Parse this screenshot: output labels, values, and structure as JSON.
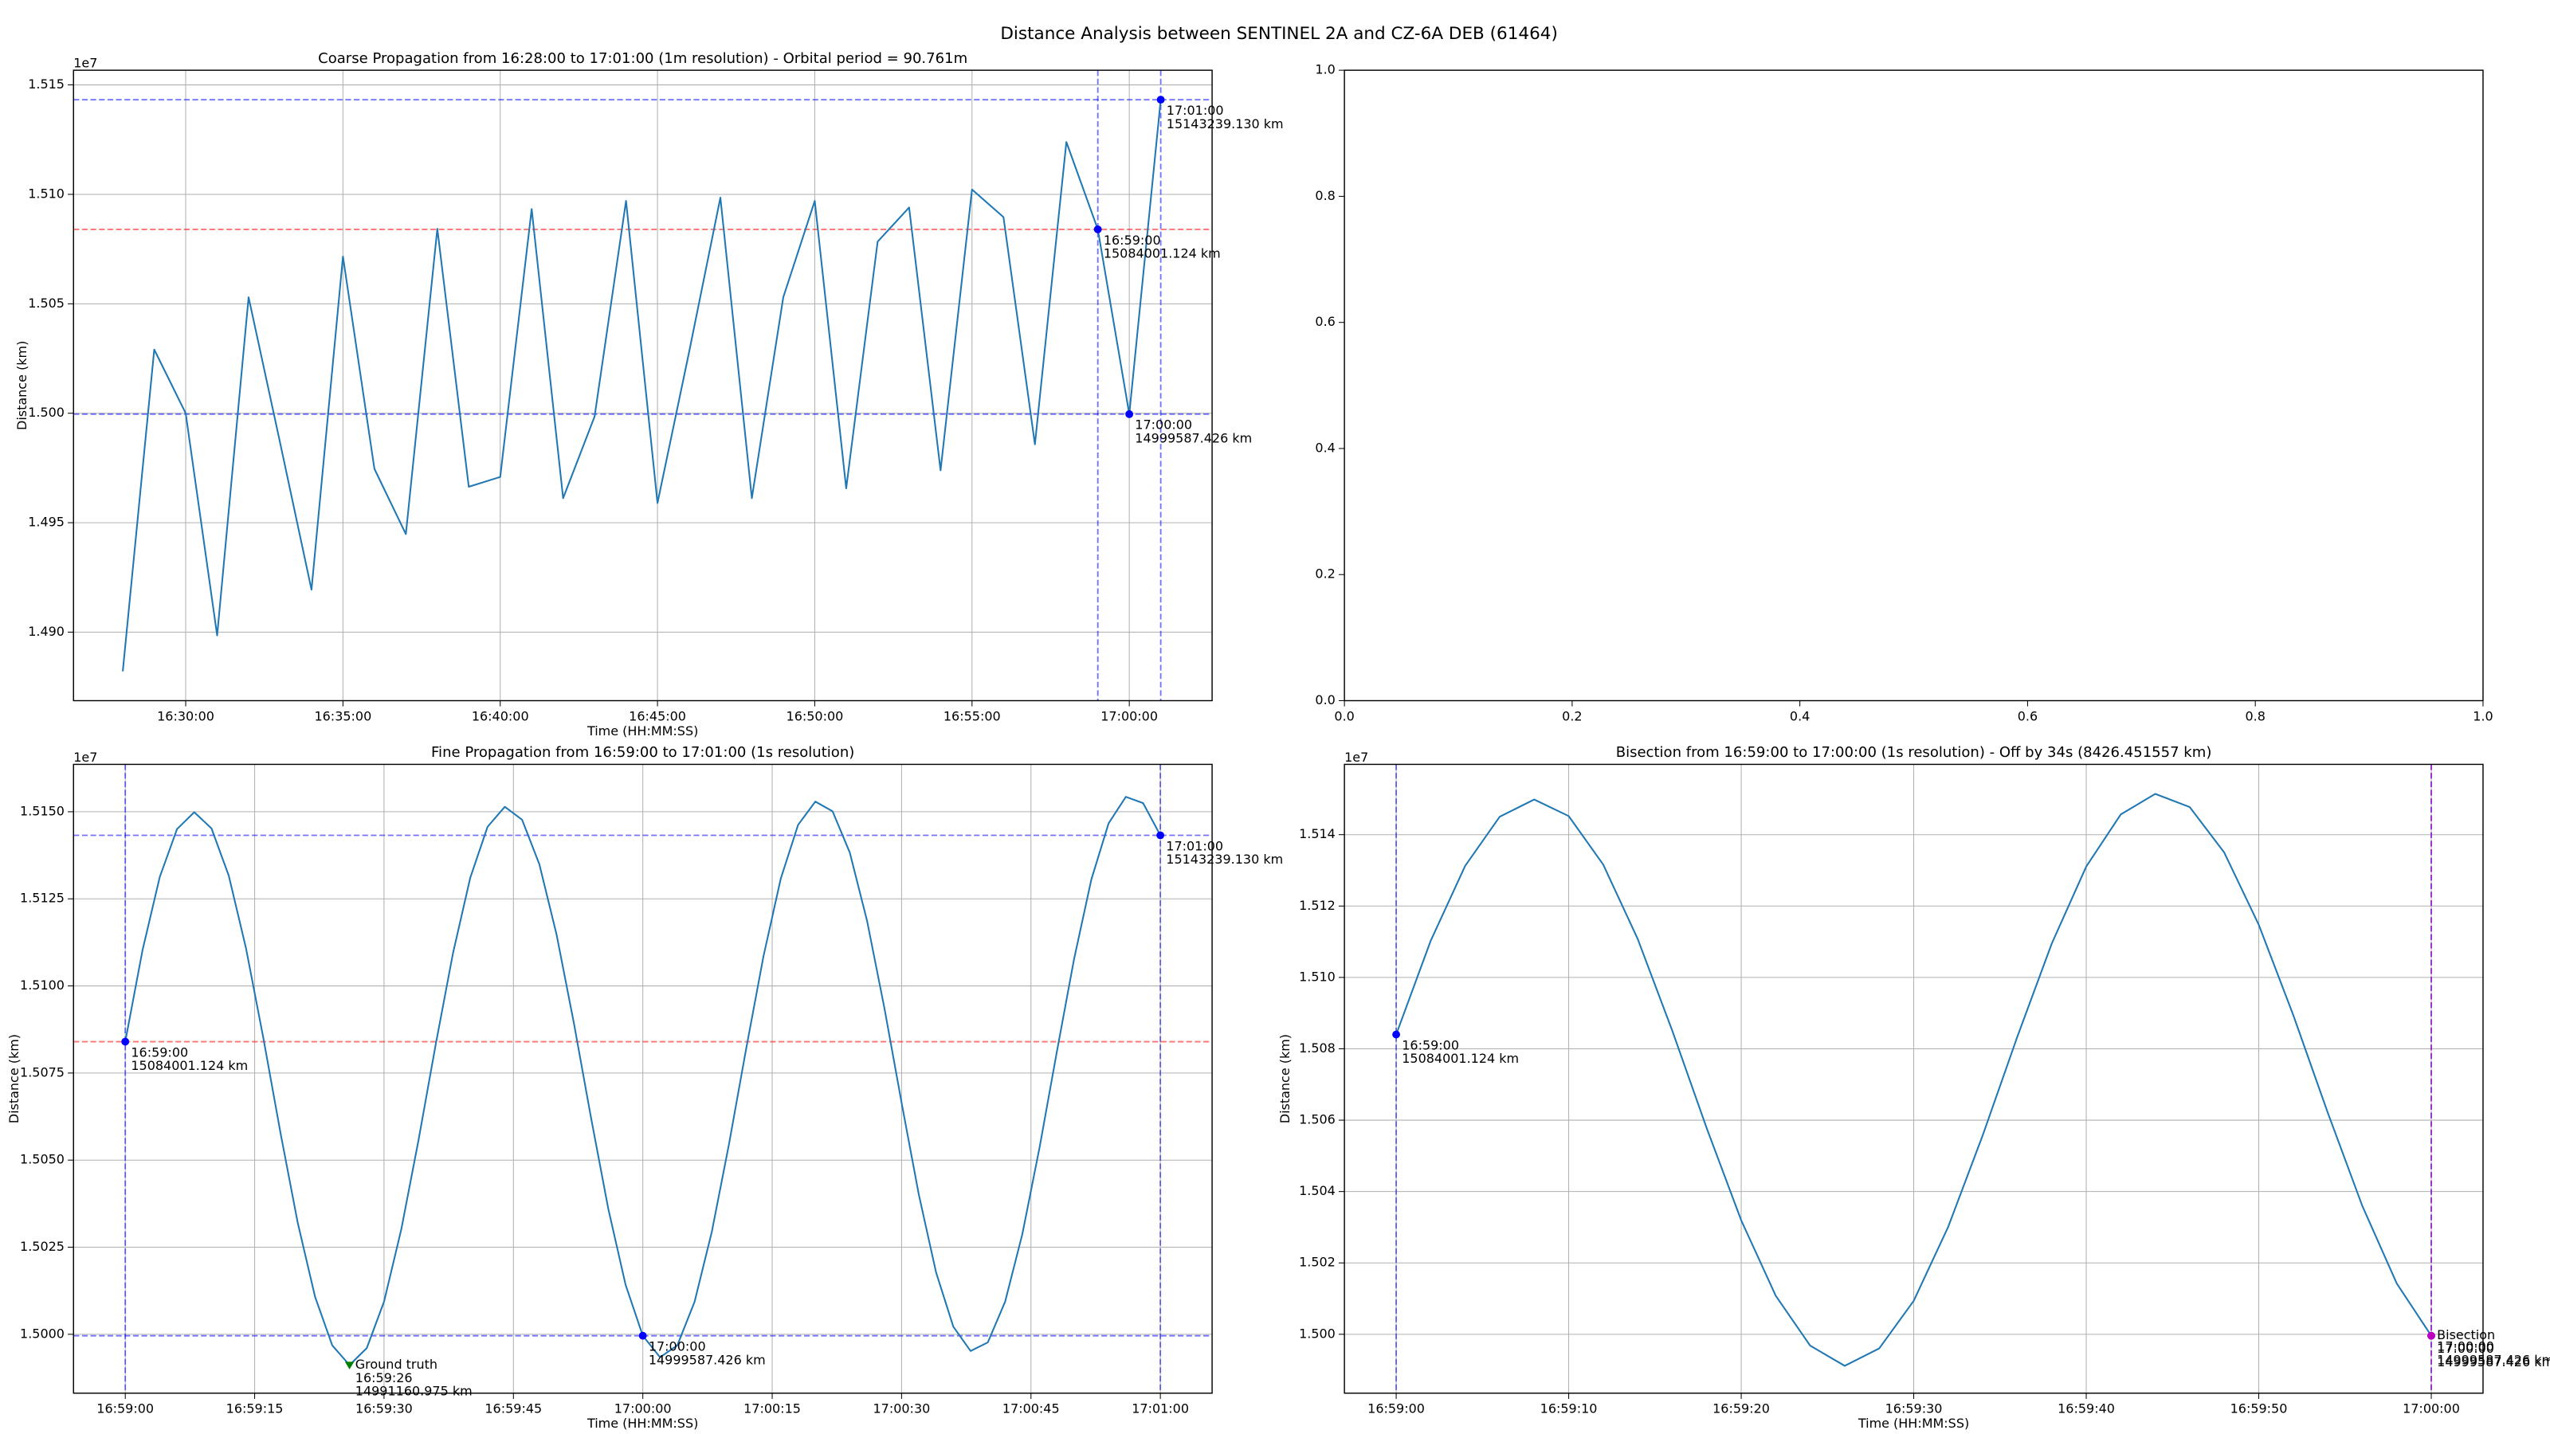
{
  "title": "Distance Analysis between SENTINEL 2A and CZ-6A DEB (61464)",
  "chart_data": [
    {
      "type": "line",
      "title": "Coarse Propagation from 16:28:00 to 17:01:00 (1m resolution) - Orbital period = 90.761m",
      "x_label": "Time (HH:MM:SS)",
      "y_label": "Distance (km)",
      "offset_text": "1e7",
      "color": "#1f77b4",
      "grid": true,
      "x": [
        "16:28:00",
        "16:29:00",
        "16:30:00",
        "16:31:00",
        "16:32:00",
        "16:33:00",
        "16:34:00",
        "16:35:00",
        "16:36:00",
        "16:37:00",
        "16:38:00",
        "16:39:00",
        "16:40:00",
        "16:41:00",
        "16:42:00",
        "16:43:00",
        "16:44:00",
        "16:45:00",
        "16:46:00",
        "16:47:00",
        "16:48:00",
        "16:49:00",
        "16:50:00",
        "16:51:00",
        "16:52:00",
        "16:53:00",
        "16:54:00",
        "16:55:00",
        "16:56:00",
        "16:57:00",
        "16:58:00",
        "16:59:00",
        "17:00:00",
        "17:01:00"
      ],
      "values": [
        14882100,
        15029100,
        15000000,
        14898500,
        15053000,
        14986600,
        14919400,
        15071600,
        14974600,
        14944800,
        15084300,
        14966400,
        14970900,
        15093300,
        14961200,
        14998500,
        15097000,
        14959000,
        15027600,
        15098500,
        14961200,
        15053000,
        15097000,
        14965700,
        15078400,
        15094000,
        14973900,
        15102200,
        15089600,
        14985800,
        15123900,
        15084001.124,
        14999587.426,
        15143239.13
      ],
      "xlim": [
        "16:26:26",
        "17:02:38"
      ],
      "xticks": [
        "16:30:00",
        "16:35:00",
        "16:40:00",
        "16:45:00",
        "16:50:00",
        "16:55:00",
        "17:00:00"
      ],
      "ylim": [
        14868700,
        15156700
      ],
      "yticks": [
        {
          "value": 14900000,
          "label": "1.490"
        },
        {
          "value": 14950000,
          "label": "1.495"
        },
        {
          "value": 15000000,
          "label": "1.500"
        },
        {
          "value": 15050000,
          "label": "1.505"
        },
        {
          "value": 15100000,
          "label": "1.510"
        },
        {
          "value": 15150000,
          "label": "1.515"
        }
      ],
      "hlines": [
        {
          "y": 15143239.13,
          "color": "#0000ff"
        },
        {
          "y": 15084001.124,
          "color": "#ff0000"
        },
        {
          "y": 14999587.426,
          "color": "#0000ff"
        }
      ],
      "vlines": [
        {
          "x": "16:59:00",
          "color": "#0000ff"
        },
        {
          "x": "17:01:00",
          "color": "#0000ff"
        }
      ],
      "annotations": [
        {
          "x": "16:59:00",
          "y": 15084001.124,
          "y_label": "15084001.124 km",
          "color": "#0000ff",
          "marker": "o"
        },
        {
          "x": "17:00:00",
          "y": 14999587.426,
          "y_label": "14999587.426 km",
          "color": "#0000ff",
          "marker": "o"
        },
        {
          "x": "17:01:00",
          "y": 15143239.13,
          "y_label": "15143239.130 km",
          "color": "#0000ff",
          "marker": "o"
        }
      ]
    },
    {
      "type": "line",
      "grid": false,
      "xlim": [
        0,
        1
      ],
      "ylim": [
        0,
        1
      ],
      "xticks": [
        {
          "value": 0,
          "label": "0.0"
        },
        {
          "value": 0.2,
          "label": "0.2"
        },
        {
          "value": 0.4,
          "label": "0.4"
        },
        {
          "value": 0.6,
          "label": "0.6"
        },
        {
          "value": 0.8,
          "label": "0.8"
        },
        {
          "value": 1,
          "label": "1.0"
        }
      ],
      "yticks": [
        {
          "value": 0,
          "label": "0.0"
        },
        {
          "value": 0.2,
          "label": "0.2"
        },
        {
          "value": 0.4,
          "label": "0.4"
        },
        {
          "value": 0.6,
          "label": "0.6"
        },
        {
          "value": 0.8,
          "label": "0.8"
        },
        {
          "value": 1,
          "label": "1.0"
        }
      ]
    },
    {
      "type": "line",
      "title": "Fine Propagation from 16:59:00 to 17:01:00 (1s resolution)",
      "x_label": "Time (HH:MM:SS)",
      "y_label": "Distance (km)",
      "offset_text": "1e7",
      "color": "#1f77b4",
      "grid": true,
      "x": [
        "16:59:00",
        "16:59:02",
        "16:59:04",
        "16:59:06",
        "16:59:08",
        "16:59:10",
        "16:59:12",
        "16:59:14",
        "16:59:16",
        "16:59:18",
        "16:59:20",
        "16:59:22",
        "16:59:24",
        "16:59:26",
        "16:59:28",
        "16:59:30",
        "16:59:32",
        "16:59:34",
        "16:59:36",
        "16:59:38",
        "16:59:40",
        "16:59:42",
        "16:59:44",
        "16:59:46",
        "16:59:48",
        "16:59:50",
        "16:59:52",
        "16:59:54",
        "16:59:56",
        "16:59:58",
        "17:00:00",
        "17:00:02",
        "17:00:04",
        "17:00:06",
        "17:00:08",
        "17:00:10",
        "17:00:12",
        "17:00:14",
        "17:00:16",
        "17:00:18",
        "17:00:20",
        "17:00:22",
        "17:00:24",
        "17:00:26",
        "17:00:28",
        "17:00:30",
        "17:00:32",
        "17:00:34",
        "17:00:36",
        "17:00:38",
        "17:00:40",
        "17:00:42",
        "17:00:44",
        "17:00:46",
        "17:00:48",
        "17:00:50",
        "17:00:52",
        "17:00:54",
        "17:00:56",
        "17:00:58",
        "17:01:00"
      ],
      "values": [
        15084001.124,
        15110245,
        15131276,
        15145024,
        15149860,
        15145204,
        15131636,
        15110785,
        15085125,
        15057756,
        15031945,
        15010793,
        14996803,
        14991160.975,
        14996045,
        15009380,
        15030116,
        15055765,
        15083307,
        15109457,
        15131083,
        15145666,
        15151432,
        15147722,
        15134989,
        15114751,
        15089448,
        15062111,
        15035998,
        15014241,
        14999587.426,
        14993401,
        14996814,
        15009314,
        15029422,
        15054698,
        15082200,
        15108628,
        15130851,
        15146221,
        15152909,
        15150137,
        15138247,
        15118668,
        15093748,
        15066458,
        15040082,
        15017761,
        15002182,
        14995204,
        14997679,
        15009328,
        15028753,
        15053655,
        15081085,
        15107768,
        15130563,
        15146680,
        15154291,
        15152473,
        15143239.13
      ],
      "xlim": [
        "16:58:54",
        "17:01:06"
      ],
      "xticks": [
        "16:59:00",
        "16:59:15",
        "16:59:30",
        "16:59:45",
        "17:00:00",
        "17:00:15",
        "17:00:30",
        "17:00:45",
        "17:01:00"
      ],
      "ylim": [
        14983100,
        15163600
      ],
      "yticks": [
        {
          "value": 15000000,
          "label": "1.5000"
        },
        {
          "value": 15025000,
          "label": "1.5025"
        },
        {
          "value": 15050000,
          "label": "1.5050"
        },
        {
          "value": 15075000,
          "label": "1.5075"
        },
        {
          "value": 15100000,
          "label": "1.5100"
        },
        {
          "value": 15125000,
          "label": "1.5125"
        },
        {
          "value": 15150000,
          "label": "1.5150"
        }
      ],
      "hlines": [
        {
          "y": 15143239.13,
          "color": "#0000ff"
        },
        {
          "y": 15084001.124,
          "color": "#ff0000"
        },
        {
          "y": 14999587.426,
          "color": "#0000ff"
        }
      ],
      "vlines": [
        {
          "x": "16:59:00",
          "color": "#0000ff"
        },
        {
          "x": "17:01:00",
          "color": "#0000ff"
        }
      ],
      "annotations": [
        {
          "x": "16:59:00",
          "y": 15084001.124,
          "y_label": "15084001.124 km",
          "color": "#0000ff",
          "marker": "o"
        },
        {
          "label": "Ground truth",
          "x": "16:59:26",
          "y": 14991160.975,
          "y_label": "14991160.975 km",
          "color": "#008000",
          "marker": "v"
        },
        {
          "x": "17:00:00",
          "y": 14999587.426,
          "y_label": "14999587.426 km",
          "color": "#0000ff",
          "marker": "o"
        },
        {
          "x": "17:01:00",
          "y": 15143239.13,
          "y_label": "15143239.130 km",
          "color": "#0000ff",
          "marker": "o"
        }
      ]
    },
    {
      "type": "line",
      "title": "Bisection from 16:59:00 to 17:00:00 (1s resolution) - Off by 34s (8426.451557 km)",
      "x_label": "Time (HH:MM:SS)",
      "y_label": "Distance (km)",
      "offset_text": "1e7",
      "color": "#1f77b4",
      "grid": true,
      "x": [
        "16:59:00",
        "16:59:02",
        "16:59:04",
        "16:59:06",
        "16:59:08",
        "16:59:10",
        "16:59:12",
        "16:59:14",
        "16:59:16",
        "16:59:18",
        "16:59:20",
        "16:59:22",
        "16:59:24",
        "16:59:26",
        "16:59:28",
        "16:59:30",
        "16:59:32",
        "16:59:34",
        "16:59:36",
        "16:59:38",
        "16:59:40",
        "16:59:42",
        "16:59:44",
        "16:59:46",
        "16:59:48",
        "16:59:50",
        "16:59:52",
        "16:59:54",
        "16:59:56",
        "16:59:58",
        "17:00:00"
      ],
      "values": [
        15084001.124,
        15110245,
        15131276,
        15145024,
        15149860,
        15145204,
        15131636,
        15110785,
        15085125,
        15057756,
        15031945,
        15010793,
        14996803,
        14991160.975,
        14996045,
        15009380,
        15030116,
        15055765,
        15083307,
        15109457,
        15131083,
        15145666,
        15151432,
        15147722,
        15134989,
        15114751,
        15089448,
        15062111,
        15035998,
        15014241,
        14999587.426
      ],
      "xlim": [
        "16:58:57",
        "17:00:03"
      ],
      "xticks": [
        "16:59:00",
        "16:59:10",
        "16:59:20",
        "16:59:30",
        "16:59:40",
        "16:59:50",
        "17:00:00"
      ],
      "ylim": [
        14983500,
        15159700
      ],
      "yticks": [
        {
          "value": 15000000,
          "label": "1.500"
        },
        {
          "value": 15020000,
          "label": "1.502"
        },
        {
          "value": 15040000,
          "label": "1.504"
        },
        {
          "value": 15060000,
          "label": "1.506"
        },
        {
          "value": 15080000,
          "label": "1.508"
        },
        {
          "value": 15100000,
          "label": "1.510"
        },
        {
          "value": 15120000,
          "label": "1.512"
        },
        {
          "value": 15140000,
          "label": "1.514"
        }
      ],
      "vlines": [
        {
          "x": "16:59:00",
          "color": "#0000ff"
        },
        {
          "x": "17:00:00",
          "color": "#0000ff"
        },
        {
          "x": "17:00:00",
          "color": "#bf00bf"
        }
      ],
      "annotations": [
        {
          "x": "16:59:00",
          "y": 15084001.124,
          "y_label": "15084001.124 km",
          "color": "#0000ff",
          "marker": "o"
        },
        {
          "x": "17:00:00",
          "y": 14999587.426,
          "y_label": "14999587.426 km",
          "color": "#0000ff",
          "marker": "o"
        },
        {
          "label": "Bisection",
          "x": "17:00:00",
          "y": 14999587.426,
          "y_label": "14999587.426 km",
          "color": "#bf00bf",
          "marker": "o"
        }
      ]
    }
  ]
}
